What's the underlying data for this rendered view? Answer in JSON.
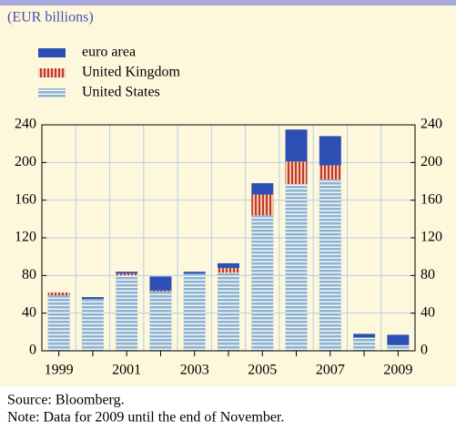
{
  "chart_data": {
    "type": "stacked-bar",
    "subtitle": "(EUR billions)",
    "categories": [
      "1999",
      null,
      "2001",
      null,
      "2003",
      null,
      "2005",
      null,
      "2007",
      null,
      "2009"
    ],
    "series": [
      {
        "name": "euro area",
        "color": "#2b4fb3",
        "values": [
          0,
          2,
          2,
          15,
          2,
          5,
          12,
          34,
          31,
          4,
          11
        ]
      },
      {
        "name": "United Kingdom",
        "color": "#c0392b",
        "values": [
          3,
          0,
          2,
          1,
          0,
          5,
          22,
          24,
          15,
          0,
          0
        ]
      },
      {
        "name": "United States",
        "color": "#8fb3cf",
        "values": [
          59,
          55,
          80,
          63,
          82,
          83,
          144,
          177,
          182,
          14,
          6
        ]
      }
    ],
    "ylim": [
      0,
      240
    ],
    "yticks": [
      0,
      40,
      80,
      120,
      160,
      200,
      240
    ],
    "grid": true,
    "source": "Source: Bloomberg.",
    "note": "Note: Data for 2009 until the end of November."
  }
}
